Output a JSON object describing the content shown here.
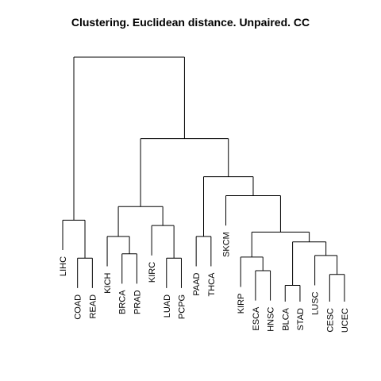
{
  "chart_data": {
    "type": "dendrogram",
    "title": "Clustering. Euclidean  distance. Unpaired. CC",
    "leaves": [
      "LIHC",
      "COAD",
      "READ",
      "KICH",
      "BRCA",
      "PRAD",
      "KIRC",
      "LUAD",
      "PCPG",
      "PAAD",
      "THCA",
      "SKCM",
      "KIRP",
      "ESCA",
      "HNSC",
      "BLCA",
      "STAD",
      "LUSC",
      "CESC",
      "UCEC"
    ],
    "merges": [
      {
        "id": "m1",
        "children": [
          "COAD",
          "READ"
        ],
        "height": 0.8
      },
      {
        "id": "m2",
        "children": [
          "LIHC",
          "m1"
        ],
        "height": 1.5
      },
      {
        "id": "m3",
        "children": [
          "BRCA",
          "PRAD"
        ],
        "height": 0.88
      },
      {
        "id": "m4",
        "children": [
          "KICH",
          "m3"
        ],
        "height": 1.2
      },
      {
        "id": "m5",
        "children": [
          "LUAD",
          "PCPG"
        ],
        "height": 0.8
      },
      {
        "id": "m6",
        "children": [
          "KIRC",
          "m5"
        ],
        "height": 1.4
      },
      {
        "id": "m7",
        "children": [
          "m4",
          "m6"
        ],
        "height": 1.75
      },
      {
        "id": "m8",
        "children": [
          "PAAD",
          "THCA"
        ],
        "height": 1.2
      },
      {
        "id": "m9",
        "children": [
          "ESCA",
          "HNSC"
        ],
        "height": 0.57
      },
      {
        "id": "m10",
        "children": [
          "KIRP",
          "m9"
        ],
        "height": 0.82
      },
      {
        "id": "m11",
        "children": [
          "BLCA",
          "STAD"
        ],
        "height": 0.3
      },
      {
        "id": "m12",
        "children": [
          "CESC",
          "UCEC"
        ],
        "height": 0.5
      },
      {
        "id": "m13",
        "children": [
          "LUSC",
          "m12"
        ],
        "height": 0.85
      },
      {
        "id": "m14",
        "children": [
          "m11",
          "m13"
        ],
        "height": 1.1
      },
      {
        "id": "m15",
        "children": [
          "m10",
          "m14"
        ],
        "height": 1.28
      },
      {
        "id": "m16",
        "children": [
          "SKCM",
          "m15"
        ],
        "height": 1.95
      },
      {
        "id": "m17",
        "children": [
          "m8",
          "m16"
        ],
        "height": 2.3
      },
      {
        "id": "m18",
        "children": [
          "m7",
          "m17"
        ],
        "height": 3.0
      },
      {
        "id": "m19",
        "children": [
          "m2",
          "m18"
        ],
        "height": 4.5
      }
    ]
  }
}
